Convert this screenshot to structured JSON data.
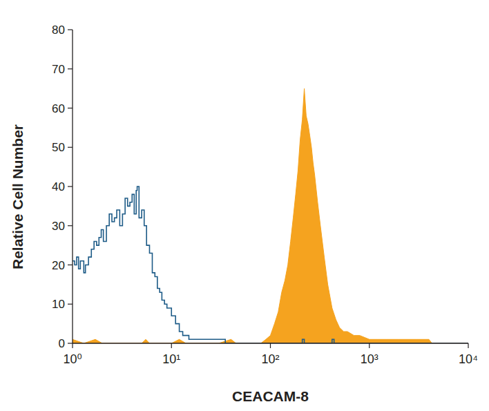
{
  "chart_data": {
    "type": "line",
    "x_label": "CEACAM-8",
    "y_label": "Relative Cell Number",
    "log": "x",
    "grid": false,
    "xlim": [
      1,
      10000
    ],
    "xticks": [
      {
        "value": 1,
        "label": "10⁰"
      },
      {
        "value": 10,
        "label": "10¹"
      },
      {
        "value": 100,
        "label": "10²"
      },
      {
        "value": 1000,
        "label": "10³"
      },
      {
        "value": 10000,
        "label": "10⁴"
      }
    ],
    "ylim": [
      0,
      80
    ],
    "yticks": [
      0,
      10,
      20,
      30,
      40,
      50,
      60,
      70,
      80
    ],
    "series": [
      {
        "type": "area",
        "color": "#f5a31f",
        "x": [
          1,
          1.3,
          1.7,
          2,
          5,
          5.5,
          6,
          10,
          12,
          14,
          30,
          40,
          45,
          80,
          90,
          100,
          110,
          120,
          130,
          140,
          150,
          160,
          170,
          180,
          190,
          200,
          210,
          220,
          230,
          240,
          250,
          260,
          270,
          280,
          300,
          320,
          350,
          380,
          420,
          460,
          500,
          550,
          600,
          700,
          800,
          1000,
          1200,
          1500,
          2000,
          3000,
          4000,
          4300,
          10000
        ],
        "values": [
          1,
          0,
          1,
          0,
          0,
          1,
          0,
          0,
          1,
          0,
          0,
          1,
          0,
          0,
          1,
          2,
          5,
          8,
          13,
          16,
          20,
          26,
          32,
          38,
          44,
          52,
          57,
          65,
          58,
          56,
          53,
          50,
          46,
          43,
          36,
          30,
          22,
          15,
          9,
          6,
          4,
          3,
          3,
          2,
          2,
          1,
          1,
          1,
          1,
          1,
          1,
          0,
          0
        ]
      },
      {
        "type": "line",
        "line_style": "step",
        "color": "#1d5b87",
        "x": [
          1,
          1.05,
          1.1,
          1.15,
          1.2,
          1.3,
          1.35,
          1.45,
          1.55,
          1.65,
          1.75,
          1.85,
          1.95,
          2.05,
          2.2,
          2.35,
          2.5,
          2.65,
          2.8,
          3,
          3.2,
          3.4,
          3.6,
          3.8,
          4,
          4.2,
          4.4,
          4.5,
          4.7,
          5,
          5.3,
          5.6,
          6,
          6.4,
          6.8,
          7.2,
          7.6,
          8,
          8.5,
          9,
          10,
          11,
          12,
          13,
          15,
          17,
          20,
          25,
          30,
          35,
          200,
          210,
          220,
          400,
          420,
          440,
          10000
        ],
        "values": [
          21,
          20,
          22,
          19,
          21,
          18,
          20,
          22,
          24,
          26,
          25,
          27,
          29,
          26,
          30,
          33,
          31,
          32,
          34,
          30,
          33,
          37,
          35,
          36,
          38,
          33,
          39,
          40,
          32,
          34,
          30,
          25,
          23,
          18,
          17,
          14,
          13,
          11,
          10,
          9,
          7,
          5,
          3,
          2,
          1,
          1,
          1,
          1,
          1,
          0,
          0,
          1,
          0,
          0,
          1,
          0,
          0
        ]
      }
    ]
  }
}
